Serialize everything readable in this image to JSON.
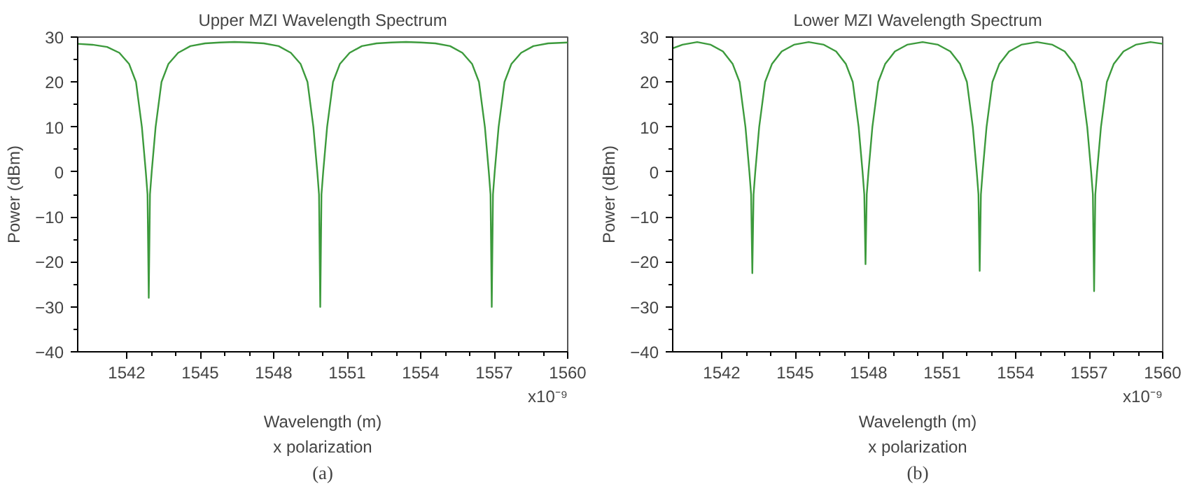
{
  "chart_data": [
    {
      "type": "line",
      "title": "Upper MZI Wavelength Spectrum",
      "xlabel": "Wavelength (m)",
      "ylabel": "Power (dBm)",
      "annotations": [
        "x10⁻⁹",
        "x polarization",
        "(a)"
      ],
      "xlim": [
        1540,
        1560
      ],
      "xticks": [
        1542,
        1545,
        1548,
        1551,
        1554,
        1557,
        1560
      ],
      "ylim": [
        -40,
        30
      ],
      "yticks": [
        -40,
        -30,
        -20,
        -10,
        0,
        10,
        20,
        30
      ],
      "series": [
        {
          "color": "#3c9a3c",
          "x": [
            1540,
            1540.6,
            1541.2,
            1541.7,
            1542.1,
            1542.38,
            1542.62,
            1542.78,
            1542.85,
            1542.9,
            1542.95,
            1543.02,
            1543.18,
            1543.42,
            1543.7,
            1544.1,
            1544.6,
            1545.2,
            1545.8,
            1546.4,
            1547.0,
            1547.6,
            1548.2,
            1548.7,
            1549.1,
            1549.38,
            1549.62,
            1549.78,
            1549.85,
            1549.9,
            1549.95,
            1550.02,
            1550.18,
            1550.42,
            1550.7,
            1551.1,
            1551.6,
            1552.2,
            1552.8,
            1553.4,
            1554.0,
            1554.6,
            1555.2,
            1555.7,
            1556.1,
            1556.38,
            1556.62,
            1556.78,
            1556.85,
            1556.9,
            1556.95,
            1557.02,
            1557.18,
            1557.42,
            1557.7,
            1558.1,
            1558.6,
            1559.2,
            1560
          ],
          "values": [
            28.5,
            28.3,
            27.8,
            26.5,
            24,
            20,
            10,
            0,
            -5,
            -28,
            -5,
            0,
            10,
            20,
            24,
            26.5,
            28,
            28.6,
            28.8,
            28.9,
            28.8,
            28.6,
            28,
            26.5,
            24,
            20,
            10,
            0,
            -5,
            -30,
            -5,
            0,
            10,
            20,
            24,
            26.5,
            28,
            28.6,
            28.8,
            28.9,
            28.8,
            28.6,
            28,
            26.5,
            24,
            20,
            10,
            0,
            -5,
            -30,
            -5,
            0,
            10,
            20,
            24,
            26.5,
            28,
            28.6,
            28.8
          ]
        }
      ]
    },
    {
      "type": "line",
      "title": "Lower MZI Wavelength Spectrum",
      "xlabel": "Wavelength (m)",
      "ylabel": "Power (dBm)",
      "annotations": [
        "x10⁻⁹",
        "x polarization",
        "(b)"
      ],
      "xlim": [
        1540,
        1560
      ],
      "xticks": [
        1542,
        1545,
        1548,
        1551,
        1554,
        1557,
        1560
      ],
      "ylim": [
        -40,
        30
      ],
      "yticks": [
        -40,
        -30,
        -20,
        -10,
        0,
        10,
        20,
        30
      ],
      "series": [
        {
          "color": "#3c9a3c",
          "x": [
            1540,
            1540.4,
            1541.0,
            1541.55,
            1542.05,
            1542.45,
            1542.73,
            1542.97,
            1543.13,
            1543.2,
            1543.25,
            1543.3,
            1543.37,
            1543.53,
            1543.77,
            1544.05,
            1544.45,
            1544.95,
            1545.55,
            1546.17,
            1546.67,
            1547.07,
            1547.35,
            1547.59,
            1547.75,
            1547.82,
            1547.87,
            1547.92,
            1547.99,
            1548.15,
            1548.39,
            1548.67,
            1549.07,
            1549.57,
            1550.2,
            1550.83,
            1551.33,
            1551.73,
            1552.01,
            1552.25,
            1552.41,
            1552.48,
            1552.53,
            1552.58,
            1552.65,
            1552.81,
            1553.05,
            1553.33,
            1553.73,
            1554.23,
            1554.87,
            1555.5,
            1556.0,
            1556.4,
            1556.68,
            1556.92,
            1557.08,
            1557.15,
            1557.2,
            1557.25,
            1557.32,
            1557.48,
            1557.72,
            1558.0,
            1558.4,
            1558.9,
            1559.5,
            1560
          ],
          "values": [
            27.5,
            28.3,
            28.9,
            28.3,
            26.8,
            24,
            20,
            10,
            0,
            -5,
            -22.5,
            -5,
            0,
            10,
            20,
            24,
            26.8,
            28.3,
            28.9,
            28.3,
            26.8,
            24,
            20,
            10,
            0,
            -5,
            -20.5,
            -5,
            0,
            10,
            20,
            24,
            26.8,
            28.3,
            28.9,
            28.3,
            26.8,
            24,
            20,
            10,
            0,
            -5,
            -22,
            -5,
            0,
            10,
            20,
            24,
            26.8,
            28.3,
            28.9,
            28.3,
            26.8,
            24,
            20,
            10,
            0,
            -5,
            -26.5,
            -5,
            0,
            10,
            20,
            24,
            26.8,
            28.3,
            28.9,
            28.5
          ]
        }
      ]
    }
  ]
}
